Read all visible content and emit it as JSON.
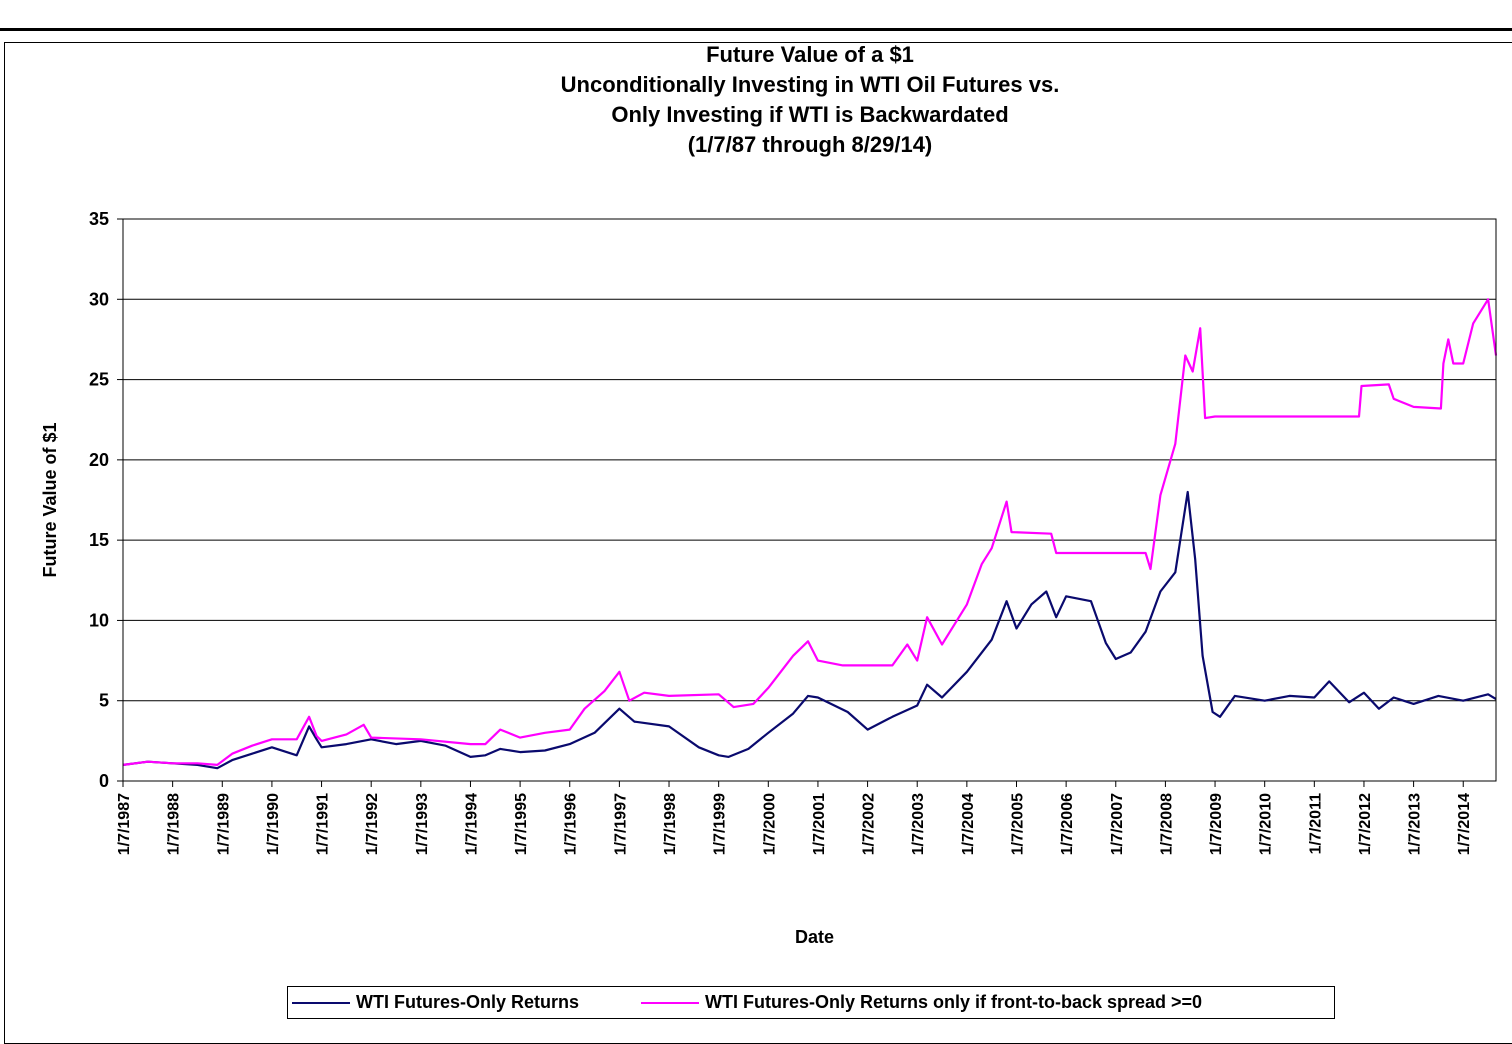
{
  "chart_data": {
    "type": "line",
    "title_lines": [
      "Future Value of a $1",
      "Unconditionally Investing in WTI Oil Futures vs.",
      "Only Investing if WTI is Backwardated",
      "(1/7/87 through 8/29/14)"
    ],
    "xlabel": "Date",
    "ylabel": "Future Value  of $1",
    "ylim": [
      0,
      35
    ],
    "yticks": [
      "0",
      "5",
      "10",
      "15",
      "20",
      "25",
      "30",
      "35"
    ],
    "xlim": [
      1987.0,
      2014.66
    ],
    "xtick_labels": [
      "1/7/1987",
      "1/7/1988",
      "1/7/1989",
      "1/7/1990",
      "1/7/1991",
      "1/7/1992",
      "1/7/1993",
      "1/7/1994",
      "1/7/1995",
      "1/7/1996",
      "1/7/1997",
      "1/7/1998",
      "1/7/1999",
      "1/7/2000",
      "1/7/2001",
      "1/7/2002",
      "1/7/2003",
      "1/7/2004",
      "1/7/2005",
      "1/7/2006",
      "1/7/2007",
      "1/7/2008",
      "1/7/2009",
      "1/7/2010",
      "1/7/2011",
      "1/7/2012",
      "1/7/2013",
      "1/7/2014"
    ],
    "grid": "horizontal",
    "legend_position": "bottom",
    "series": [
      {
        "name": "WTI Futures-Only Returns",
        "color": "#0a0a6e",
        "points": [
          [
            1987.0,
            1.0
          ],
          [
            1987.5,
            1.2
          ],
          [
            1988.0,
            1.1
          ],
          [
            1988.5,
            1.0
          ],
          [
            1988.9,
            0.8
          ],
          [
            1989.2,
            1.3
          ],
          [
            1989.6,
            1.7
          ],
          [
            1990.0,
            2.1
          ],
          [
            1990.5,
            1.6
          ],
          [
            1990.75,
            3.4
          ],
          [
            1990.9,
            2.6
          ],
          [
            1991.0,
            2.1
          ],
          [
            1991.5,
            2.3
          ],
          [
            1992.0,
            2.6
          ],
          [
            1992.5,
            2.3
          ],
          [
            1993.0,
            2.5
          ],
          [
            1993.5,
            2.2
          ],
          [
            1994.0,
            1.5
          ],
          [
            1994.3,
            1.6
          ],
          [
            1994.6,
            2.0
          ],
          [
            1995.0,
            1.8
          ],
          [
            1995.5,
            1.9
          ],
          [
            1996.0,
            2.3
          ],
          [
            1996.5,
            3.0
          ],
          [
            1997.0,
            4.5
          ],
          [
            1997.3,
            3.7
          ],
          [
            1998.0,
            3.4
          ],
          [
            1998.6,
            2.1
          ],
          [
            1999.0,
            1.6
          ],
          [
            1999.2,
            1.5
          ],
          [
            1999.6,
            2.0
          ],
          [
            2000.0,
            3.0
          ],
          [
            2000.5,
            4.2
          ],
          [
            2000.8,
            5.3
          ],
          [
            2001.0,
            5.2
          ],
          [
            2001.6,
            4.3
          ],
          [
            2002.0,
            3.2
          ],
          [
            2002.5,
            4.0
          ],
          [
            2003.0,
            4.7
          ],
          [
            2003.2,
            6.0
          ],
          [
            2003.5,
            5.2
          ],
          [
            2004.0,
            6.8
          ],
          [
            2004.5,
            8.8
          ],
          [
            2004.8,
            11.2
          ],
          [
            2005.0,
            9.5
          ],
          [
            2005.3,
            11.0
          ],
          [
            2005.6,
            11.8
          ],
          [
            2005.8,
            10.2
          ],
          [
            2006.0,
            11.5
          ],
          [
            2006.5,
            11.2
          ],
          [
            2006.8,
            8.6
          ],
          [
            2007.0,
            7.6
          ],
          [
            2007.3,
            8.0
          ],
          [
            2007.6,
            9.3
          ],
          [
            2007.9,
            11.8
          ],
          [
            2008.2,
            13.0
          ],
          [
            2008.45,
            18.0
          ],
          [
            2008.6,
            13.8
          ],
          [
            2008.75,
            7.8
          ],
          [
            2008.95,
            4.3
          ],
          [
            2009.1,
            4.0
          ],
          [
            2009.4,
            5.3
          ],
          [
            2010.0,
            5.0
          ],
          [
            2010.5,
            5.3
          ],
          [
            2011.0,
            5.2
          ],
          [
            2011.3,
            6.2
          ],
          [
            2011.7,
            4.9
          ],
          [
            2012.0,
            5.5
          ],
          [
            2012.3,
            4.5
          ],
          [
            2012.6,
            5.2
          ],
          [
            2013.0,
            4.8
          ],
          [
            2013.5,
            5.3
          ],
          [
            2014.0,
            5.0
          ],
          [
            2014.5,
            5.4
          ],
          [
            2014.66,
            5.1
          ]
        ]
      },
      {
        "name": "WTI Futures-Only Returns only if front-to-back spread >=0",
        "color": "#ff00ff",
        "points": [
          [
            1987.0,
            1.0
          ],
          [
            1987.5,
            1.2
          ],
          [
            1988.0,
            1.1
          ],
          [
            1988.5,
            1.1
          ],
          [
            1988.9,
            1.0
          ],
          [
            1989.2,
            1.7
          ],
          [
            1989.6,
            2.2
          ],
          [
            1990.0,
            2.6
          ],
          [
            1990.5,
            2.6
          ],
          [
            1990.75,
            4.0
          ],
          [
            1990.9,
            2.8
          ],
          [
            1991.0,
            2.5
          ],
          [
            1991.5,
            2.9
          ],
          [
            1991.85,
            3.5
          ],
          [
            1992.0,
            2.7
          ],
          [
            1993.0,
            2.6
          ],
          [
            1994.0,
            2.3
          ],
          [
            1994.3,
            2.3
          ],
          [
            1994.6,
            3.2
          ],
          [
            1995.0,
            2.7
          ],
          [
            1995.5,
            3.0
          ],
          [
            1996.0,
            3.2
          ],
          [
            1996.3,
            4.5
          ],
          [
            1996.7,
            5.6
          ],
          [
            1997.0,
            6.8
          ],
          [
            1997.2,
            5.0
          ],
          [
            1997.5,
            5.5
          ],
          [
            1998.0,
            5.3
          ],
          [
            1999.0,
            5.4
          ],
          [
            1999.3,
            4.6
          ],
          [
            1999.7,
            4.8
          ],
          [
            2000.0,
            5.8
          ],
          [
            2000.5,
            7.8
          ],
          [
            2000.8,
            8.7
          ],
          [
            2001.0,
            7.5
          ],
          [
            2001.5,
            7.2
          ],
          [
            2002.0,
            7.2
          ],
          [
            2002.5,
            7.2
          ],
          [
            2002.8,
            8.5
          ],
          [
            2003.0,
            7.5
          ],
          [
            2003.2,
            10.2
          ],
          [
            2003.5,
            8.5
          ],
          [
            2004.0,
            11.0
          ],
          [
            2004.3,
            13.5
          ],
          [
            2004.5,
            14.5
          ],
          [
            2004.8,
            17.4
          ],
          [
            2004.9,
            15.5
          ],
          [
            2005.7,
            15.4
          ],
          [
            2005.8,
            14.2
          ],
          [
            2007.0,
            14.2
          ],
          [
            2007.6,
            14.2
          ],
          [
            2007.7,
            13.2
          ],
          [
            2007.9,
            17.8
          ],
          [
            2008.2,
            21.0
          ],
          [
            2008.4,
            26.5
          ],
          [
            2008.55,
            25.5
          ],
          [
            2008.7,
            28.2
          ],
          [
            2008.8,
            22.6
          ],
          [
            2009.0,
            22.7
          ],
          [
            2011.9,
            22.7
          ],
          [
            2011.95,
            24.6
          ],
          [
            2012.5,
            24.7
          ],
          [
            2012.6,
            23.8
          ],
          [
            2013.0,
            23.3
          ],
          [
            2013.55,
            23.2
          ],
          [
            2013.6,
            26.0
          ],
          [
            2013.7,
            27.5
          ],
          [
            2013.8,
            26.0
          ],
          [
            2014.0,
            26.0
          ],
          [
            2014.2,
            28.5
          ],
          [
            2014.5,
            30.0
          ],
          [
            2014.66,
            26.5
          ]
        ]
      }
    ]
  }
}
